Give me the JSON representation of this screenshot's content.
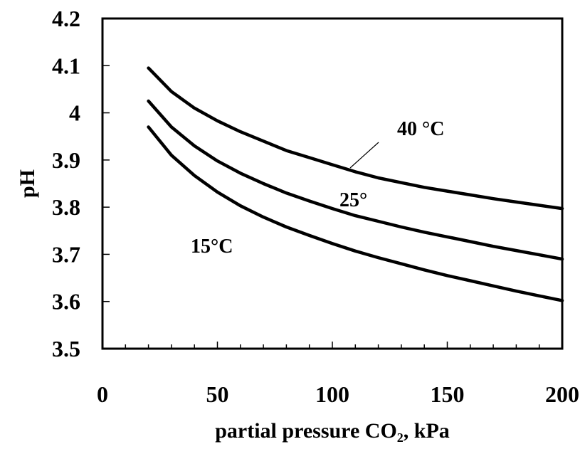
{
  "chart_data": {
    "type": "line",
    "title": "",
    "xlabel": "partial pressure CO₂,  kPa",
    "ylabel": "pH",
    "xlim": [
      0,
      200
    ],
    "ylim": [
      3.5,
      4.2
    ],
    "x_ticks": [
      "0",
      "50",
      "100",
      "150",
      "200"
    ],
    "x_tick_values": [
      0,
      50,
      100,
      150,
      200
    ],
    "y_ticks": [
      "3.5",
      "3.6",
      "3.7",
      "3.8",
      "3.9",
      "4",
      "4.1",
      "4.2"
    ],
    "y_tick_values": [
      3.5,
      3.6,
      3.7,
      3.8,
      3.9,
      4.0,
      4.1,
      4.2
    ],
    "grid": false,
    "legend": "none",
    "line_color": "#000000",
    "x": [
      20,
      30,
      40,
      50,
      60,
      70,
      80,
      90,
      100,
      110,
      120,
      130,
      140,
      150,
      160,
      170,
      180,
      190,
      200
    ],
    "series": [
      {
        "name": "40 °C",
        "values": [
          4.095,
          4.045,
          4.01,
          3.983,
          3.96,
          3.94,
          3.92,
          3.905,
          3.89,
          3.875,
          3.862,
          3.852,
          3.842,
          3.834,
          3.826,
          3.818,
          3.811,
          3.804,
          3.797
        ]
      },
      {
        "name": "25°",
        "values": [
          4.025,
          3.97,
          3.93,
          3.898,
          3.872,
          3.85,
          3.83,
          3.813,
          3.797,
          3.782,
          3.77,
          3.758,
          3.747,
          3.737,
          3.727,
          3.717,
          3.708,
          3.699,
          3.69
        ]
      },
      {
        "name": "15°C",
        "values": [
          3.97,
          3.91,
          3.867,
          3.832,
          3.803,
          3.779,
          3.758,
          3.74,
          3.723,
          3.707,
          3.693,
          3.68,
          3.667,
          3.655,
          3.644,
          3.633,
          3.622,
          3.612,
          3.602
        ]
      }
    ],
    "annotations": [
      {
        "text": "40 °C",
        "series": 0
      },
      {
        "text": "25°",
        "series": 1
      },
      {
        "text": "15°C",
        "series": 2
      }
    ]
  }
}
